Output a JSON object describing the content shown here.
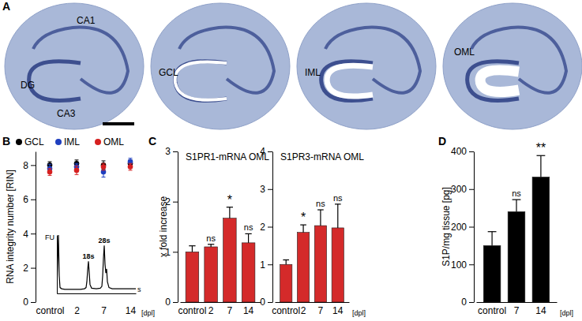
{
  "image_panel": {
    "panel_label": "A",
    "images": [
      {
        "labels": [
          "CA1",
          "DG",
          "CA3"
        ]
      },
      {
        "labels": [
          "GCL"
        ]
      },
      {
        "labels": [
          "IML"
        ]
      },
      {
        "labels": [
          "OML"
        ]
      }
    ]
  },
  "chart_data": [
    {
      "type": "scatter",
      "panel_label": "B",
      "y_label": "RNA integrity number [RIN]",
      "x_label": "[dpl]",
      "categories": [
        "control",
        "2",
        "7",
        "14"
      ],
      "series": [
        {
          "name": "GCL",
          "color": "#000000",
          "values": [
            8.0,
            8.1,
            8.0,
            8.1
          ],
          "errors": [
            0.2,
            0.2,
            0.25,
            0.2
          ]
        },
        {
          "name": "IML",
          "color": "#1f3fbf",
          "values": [
            7.8,
            7.9,
            7.6,
            8.2
          ],
          "errors": [
            0.25,
            0.2,
            0.3,
            0.2
          ]
        },
        {
          "name": "OML",
          "color": "#d62020",
          "values": [
            7.6,
            7.7,
            7.9,
            7.9
          ],
          "errors": [
            0.2,
            0.25,
            0.2,
            0.2
          ]
        }
      ],
      "ylim": [
        0,
        8.8
      ],
      "yticks": [
        0,
        2,
        4,
        6,
        8
      ],
      "legend": "top",
      "marker": "circle"
    },
    {
      "type": "line",
      "x_label": "s",
      "y_label": "FU",
      "x": [
        0,
        2,
        3,
        4,
        6,
        10,
        20,
        30,
        35,
        37,
        38,
        39,
        40,
        41,
        42,
        44,
        50,
        55,
        57,
        58,
        59,
        60,
        61,
        62,
        63,
        64,
        66,
        70,
        80,
        90,
        100
      ],
      "values": [
        0.08,
        1.0,
        0.3,
        0.1,
        0.08,
        0.07,
        0.07,
        0.07,
        0.08,
        0.1,
        0.2,
        0.4,
        0.55,
        0.35,
        0.15,
        0.09,
        0.08,
        0.09,
        0.12,
        0.3,
        0.6,
        0.82,
        0.5,
        0.35,
        0.42,
        0.2,
        0.1,
        0.08,
        0.08,
        0.08,
        0.08
      ],
      "xlim": [
        0,
        100
      ],
      "ylim": [
        0,
        1
      ],
      "tick_labels": false,
      "color": "#000000",
      "annotations": [
        {
          "text": "18s",
          "x": 40
        },
        {
          "text": "28s",
          "x": 60
        }
      ]
    },
    {
      "type": "bar",
      "panel_label": "C",
      "title": "S1PR1-mRNA OML",
      "y_label": "x fold increase",
      "categories": [
        "control",
        "2",
        "7",
        "14"
      ],
      "values": [
        1.0,
        1.1,
        1.67,
        1.18
      ],
      "errors": [
        0.12,
        0.05,
        0.22,
        0.18
      ],
      "annotations": [
        null,
        "ns",
        "*",
        "ns"
      ],
      "color": "#d42a2a",
      "ylim": [
        0,
        3
      ],
      "yticks": [
        0,
        1,
        2,
        3
      ]
    },
    {
      "type": "bar",
      "title": "S1PR3-mRNA OML",
      "x_label": "[dpl]",
      "categories": [
        "control",
        "2",
        "7",
        "14"
      ],
      "values": [
        1.0,
        1.85,
        2.03,
        1.97
      ],
      "errors": [
        0.12,
        0.2,
        0.42,
        0.63
      ],
      "annotations": [
        null,
        "*",
        "ns",
        "ns"
      ],
      "color": "#d42a2a",
      "ylim": [
        0,
        4
      ],
      "yticks": [
        0,
        1,
        2,
        3,
        4
      ]
    },
    {
      "type": "bar",
      "panel_label": "D",
      "y_label": "S1P/mg tissue [pg]",
      "x_label": "[dpl]",
      "categories": [
        "control",
        "7",
        "14"
      ],
      "values": [
        150,
        240,
        332
      ],
      "errors": [
        37,
        32,
        57
      ],
      "annotations": [
        null,
        "ns",
        "**"
      ],
      "color": "#000000",
      "ylim": [
        0,
        400
      ],
      "yticks": [
        0,
        100,
        200,
        300,
        400
      ]
    }
  ]
}
